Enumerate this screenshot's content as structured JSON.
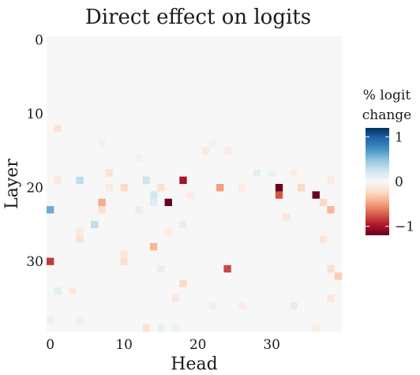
{
  "chart_data": {
    "type": "heatmap",
    "title": "Direct effect on logits",
    "xlabel": "Head",
    "ylabel": "Layer",
    "x_ticks": [
      0,
      10,
      20,
      30
    ],
    "y_ticks": [
      0,
      10,
      20,
      30
    ],
    "n_heads": 40,
    "n_layers": 40,
    "value_range": [
      -1.2,
      1.2
    ],
    "colorbar": {
      "title_line1": "% logit",
      "title_line2": "change",
      "ticks": [
        1,
        0,
        -1
      ],
      "tick_labels": [
        "1",
        "0",
        "−1"
      ],
      "colors": [
        "#67001f",
        "#b2182b",
        "#d6604d",
        "#f4a582",
        "#fddbc7",
        "#f7f7f7",
        "#d1e5f0",
        "#92c5de",
        "#4393c3",
        "#2166ac",
        "#053061"
      ]
    },
    "background_value": 0.0,
    "cells": [
      {
        "layer": 12,
        "head": 1,
        "value": -0.18
      },
      {
        "layer": 14,
        "head": 7,
        "value": 0.06
      },
      {
        "layer": 14,
        "head": 22,
        "value": -0.08
      },
      {
        "layer": 15,
        "head": 21,
        "value": -0.12
      },
      {
        "layer": 15,
        "head": 24,
        "value": -0.08
      },
      {
        "layer": 16,
        "head": 12,
        "value": -0.06
      },
      {
        "layer": 18,
        "head": 8,
        "value": -0.18
      },
      {
        "layer": 18,
        "head": 28,
        "value": 0.12
      },
      {
        "layer": 18,
        "head": 30,
        "value": 0.08
      },
      {
        "layer": 18,
        "head": 33,
        "value": -0.08
      },
      {
        "layer": 19,
        "head": 4,
        "value": 0.3
      },
      {
        "layer": 19,
        "head": 13,
        "value": 0.25
      },
      {
        "layer": 19,
        "head": 18,
        "value": -1.0
      },
      {
        "layer": 19,
        "head": 1,
        "value": -0.12
      },
      {
        "layer": 19,
        "head": 38,
        "value": -0.1
      },
      {
        "layer": 20,
        "head": 10,
        "value": -0.25
      },
      {
        "layer": 20,
        "head": 15,
        "value": -0.18
      },
      {
        "layer": 20,
        "head": 23,
        "value": -0.5
      },
      {
        "layer": 20,
        "head": 31,
        "value": -1.25
      },
      {
        "layer": 20,
        "head": 34,
        "value": -0.25
      },
      {
        "layer": 20,
        "head": 8,
        "value": -0.1
      },
      {
        "layer": 20,
        "head": 26,
        "value": -0.1
      },
      {
        "layer": 21,
        "head": 14,
        "value": 0.22
      },
      {
        "layer": 21,
        "head": 31,
        "value": -0.75
      },
      {
        "layer": 21,
        "head": 36,
        "value": -1.25
      },
      {
        "layer": 21,
        "head": 19,
        "value": -0.1
      },
      {
        "layer": 22,
        "head": 7,
        "value": -0.45
      },
      {
        "layer": 22,
        "head": 16,
        "value": -1.25
      },
      {
        "layer": 22,
        "head": 14,
        "value": 0.15
      },
      {
        "layer": 22,
        "head": 37,
        "value": -0.25
      },
      {
        "layer": 23,
        "head": 0,
        "value": 0.6
      },
      {
        "layer": 23,
        "head": 7,
        "value": -0.2
      },
      {
        "layer": 23,
        "head": 12,
        "value": 0.1
      },
      {
        "layer": 23,
        "head": 38,
        "value": -0.4
      },
      {
        "layer": 24,
        "head": 32,
        "value": -0.15
      },
      {
        "layer": 25,
        "head": 6,
        "value": 0.3
      },
      {
        "layer": 25,
        "head": 18,
        "value": 0.12
      },
      {
        "layer": 26,
        "head": 4,
        "value": -0.12
      },
      {
        "layer": 26,
        "head": 16,
        "value": -0.1
      },
      {
        "layer": 27,
        "head": 4,
        "value": -0.18
      },
      {
        "layer": 27,
        "head": 37,
        "value": -0.15
      },
      {
        "layer": 28,
        "head": 14,
        "value": -0.4
      },
      {
        "layer": 29,
        "head": 10,
        "value": -0.15
      },
      {
        "layer": 30,
        "head": 0,
        "value": -0.85
      },
      {
        "layer": 30,
        "head": 10,
        "value": -0.2
      },
      {
        "layer": 31,
        "head": 24,
        "value": -0.8
      },
      {
        "layer": 31,
        "head": 38,
        "value": -0.2
      },
      {
        "layer": 31,
        "head": 15,
        "value": 0.1
      },
      {
        "layer": 32,
        "head": 39,
        "value": -0.3
      },
      {
        "layer": 33,
        "head": 18,
        "value": -0.25
      },
      {
        "layer": 34,
        "head": 1,
        "value": 0.12
      },
      {
        "layer": 34,
        "head": 3,
        "value": -0.12
      },
      {
        "layer": 35,
        "head": 17,
        "value": -0.12
      },
      {
        "layer": 35,
        "head": 38,
        "value": -0.15
      },
      {
        "layer": 36,
        "head": 26,
        "value": -0.1
      },
      {
        "layer": 36,
        "head": 33,
        "value": 0.12
      },
      {
        "layer": 36,
        "head": 22,
        "value": 0.08
      },
      {
        "layer": 38,
        "head": 4,
        "value": -0.1
      },
      {
        "layer": 38,
        "head": 0,
        "value": -0.08
      },
      {
        "layer": 39,
        "head": 13,
        "value": -0.18
      },
      {
        "layer": 39,
        "head": 15,
        "value": 0.1
      },
      {
        "layer": 39,
        "head": 17,
        "value": 0.08
      },
      {
        "layer": 39,
        "head": 36,
        "value": -0.08
      }
    ]
  }
}
